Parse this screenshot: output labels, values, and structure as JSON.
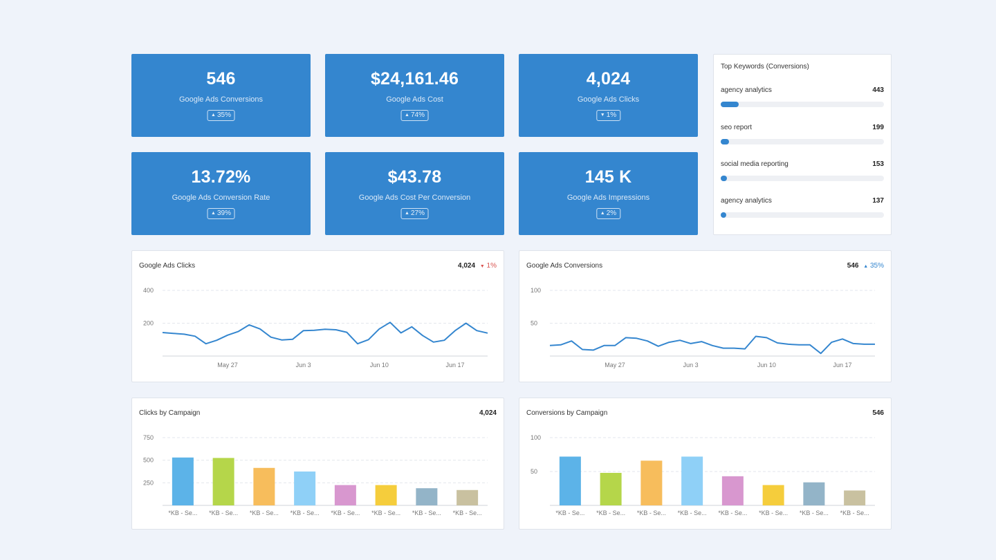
{
  "kpis": [
    {
      "value": "546",
      "label": "Google Ads Conversions",
      "change": "35%",
      "direction": "up"
    },
    {
      "value": "$24,161.46",
      "label": "Google Ads Cost",
      "change": "74%",
      "direction": "up"
    },
    {
      "value": "4,024",
      "label": "Google Ads Clicks",
      "change": "1%",
      "direction": "down"
    },
    {
      "value": "13.72%",
      "label": "Google Ads Conversion Rate",
      "change": "39%",
      "direction": "up"
    },
    {
      "value": "$43.78",
      "label": "Google Ads Cost Per Conversion",
      "change": "27%",
      "direction": "up"
    },
    {
      "value": "145 K",
      "label": "Google Ads Impressions",
      "change": "2%",
      "direction": "up"
    }
  ],
  "keywords": {
    "title": "Top Keywords (Conversions)",
    "max": 4000,
    "items": [
      {
        "name": "agency analytics",
        "count": "443",
        "value": 443
      },
      {
        "name": "seo report",
        "count": "199",
        "value": 199
      },
      {
        "name": "social media reporting",
        "count": "153",
        "value": 153
      },
      {
        "name": "agency analytics",
        "count": "137",
        "value": 137
      }
    ]
  },
  "line_charts": {
    "clicks": {
      "title": "Google Ads Clicks",
      "total": "4,024",
      "change": "1%",
      "direction": "down"
    },
    "conversions": {
      "title": "Google Ads Conversions",
      "total": "546",
      "change": "35%",
      "direction": "up"
    }
  },
  "bar_charts": {
    "clicks": {
      "title": "Clicks by Campaign",
      "total": "4,024"
    },
    "conversions": {
      "title": "Conversions by Campaign",
      "total": "546"
    }
  },
  "colors": {
    "accent": "#3486cf",
    "up": "#3486cf",
    "down": "#d9534f",
    "bars": [
      "#5cb3e8",
      "#b5d64a",
      "#f7bd5c",
      "#8fd0f7",
      "#d897cf",
      "#f5cd3c",
      "#93b4c8",
      "#c9c1a0"
    ]
  },
  "chart_data": [
    {
      "type": "line",
      "title": "Google Ads Clicks",
      "xlabel": "",
      "ylabel": "",
      "ylim": [
        0,
        400
      ],
      "yticks": [
        200,
        400
      ],
      "ytick_labels": [
        "200",
        "400"
      ],
      "xlim": [
        "May 21",
        "Jun 20"
      ],
      "xticks": [
        "May 27",
        "Jun 3",
        "Jun 10",
        "Jun 17"
      ],
      "xtick_labels": [
        "May 27",
        "Jun 3",
        "Jun 10",
        "Jun 17"
      ],
      "grid": true,
      "x": [
        "May 21",
        "May 22",
        "May 23",
        "May 24",
        "May 25",
        "May 26",
        "May 27",
        "May 28",
        "May 29",
        "May 30",
        "May 31",
        "Jun 1",
        "Jun 2",
        "Jun 3",
        "Jun 4",
        "Jun 5",
        "Jun 6",
        "Jun 7",
        "Jun 8",
        "Jun 9",
        "Jun 10",
        "Jun 11",
        "Jun 12",
        "Jun 13",
        "Jun 14",
        "Jun 15",
        "Jun 16",
        "Jun 17",
        "Jun 18",
        "Jun 19",
        "Jun 20"
      ],
      "series": [
        {
          "values": [
            143,
            138,
            133,
            121,
            75,
            96,
            127,
            150,
            190,
            165,
            115,
            98,
            102,
            155,
            157,
            163,
            160,
            145,
            75,
            100,
            165,
            205,
            141,
            178,
            125,
            85,
            96,
            155,
            200,
            155,
            140
          ]
        }
      ]
    },
    {
      "type": "line",
      "title": "Google Ads Conversions",
      "xlabel": "",
      "ylabel": "",
      "ylim": [
        0,
        100
      ],
      "yticks": [
        50,
        100
      ],
      "ytick_labels": [
        "50",
        "100"
      ],
      "xlim": [
        "May 21",
        "Jun 20"
      ],
      "xticks": [
        "May 27",
        "Jun 3",
        "Jun 10",
        "Jun 17"
      ],
      "xtick_labels": [
        "May 27",
        "Jun 3",
        "Jun 10",
        "Jun 17"
      ],
      "grid": true,
      "x": [
        "May 21",
        "May 22",
        "May 23",
        "May 24",
        "May 25",
        "May 26",
        "May 27",
        "May 28",
        "May 29",
        "May 30",
        "May 31",
        "Jun 1",
        "Jun 2",
        "Jun 3",
        "Jun 4",
        "Jun 5",
        "Jun 6",
        "Jun 7",
        "Jun 8",
        "Jun 9",
        "Jun 10",
        "Jun 11",
        "Jun 12",
        "Jun 13",
        "Jun 14",
        "Jun 15",
        "Jun 16",
        "Jun 17",
        "Jun 18",
        "Jun 19",
        "Jun 20"
      ],
      "series": [
        {
          "values": [
            16,
            17,
            23,
            10,
            9,
            16,
            16,
            28,
            27,
            23,
            15,
            21,
            24,
            19,
            22,
            16,
            12,
            12,
            11,
            30,
            28,
            20,
            18,
            17,
            17,
            4,
            21,
            26,
            19,
            18,
            18
          ]
        }
      ]
    },
    {
      "type": "bar",
      "title": "Clicks by Campaign",
      "xlabel": "",
      "ylabel": "",
      "ylim": [
        0,
        750
      ],
      "yticks": [
        250,
        500,
        750
      ],
      "ytick_labels": [
        "250",
        "500",
        "750"
      ],
      "grid": true,
      "categories": [
        "*KB - Se...",
        "*KB - Se...",
        "*KB - Se...",
        "*KB - Se...",
        "*KB - Se...",
        "*KB - Se...",
        "*KB - Se...",
        "*KB - Se..."
      ],
      "values": [
        530,
        525,
        415,
        375,
        225,
        225,
        190,
        170
      ]
    },
    {
      "type": "bar",
      "title": "Conversions by Campaign",
      "xlabel": "",
      "ylabel": "",
      "ylim": [
        0,
        100
      ],
      "yticks": [
        50,
        100
      ],
      "ytick_labels": [
        "50",
        "100"
      ],
      "grid": true,
      "categories": [
        "*KB - Se...",
        "*KB - Se...",
        "*KB - Se...",
        "*KB - Se...",
        "*KB - Se...",
        "*KB - Se...",
        "*KB - Se...",
        "*KB - Se..."
      ],
      "values": [
        72,
        48,
        66,
        72,
        43,
        30,
        34,
        22
      ]
    }
  ]
}
